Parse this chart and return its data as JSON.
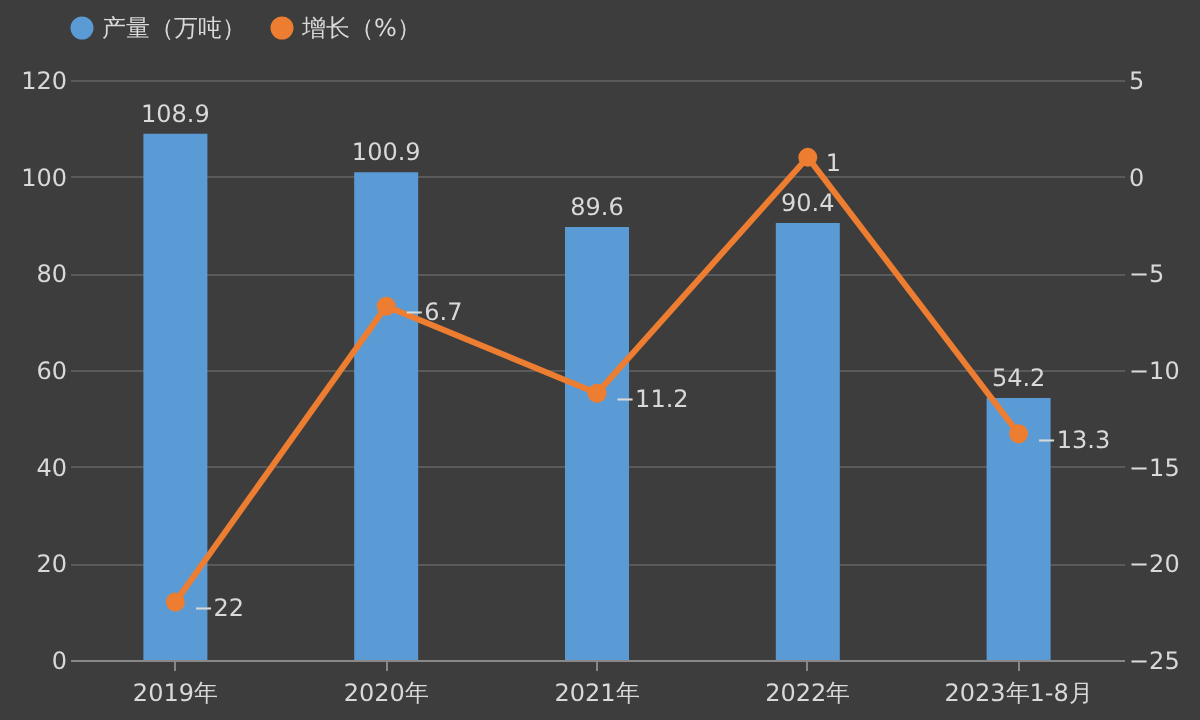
{
  "chart_data": {
    "type": "bar",
    "categories": [
      "2019年",
      "2020年",
      "2021年",
      "2022年",
      "2023年1-8月"
    ],
    "series": [
      {
        "name": "产量（万吨）",
        "color": "#5b9bd5",
        "values": [
          108.9,
          100.9,
          89.6,
          90.4,
          54.2
        ]
      },
      {
        "name": "增长（%）",
        "type": "line",
        "axis": "y2",
        "color": "#ed7d31",
        "values": [
          -22,
          -6.7,
          -11.2,
          1,
          -13.3
        ]
      }
    ],
    "ylim": [
      0,
      120
    ],
    "yticks": [
      0,
      20,
      40,
      60,
      80,
      100,
      120
    ],
    "y2lim": [
      -25,
      5
    ],
    "y2ticks": [
      -25,
      -20,
      -15,
      -10,
      -5,
      0,
      5
    ],
    "data_labels": true,
    "grid": "y",
    "legend": "top",
    "marker": "circle",
    "line_style": "solid"
  }
}
